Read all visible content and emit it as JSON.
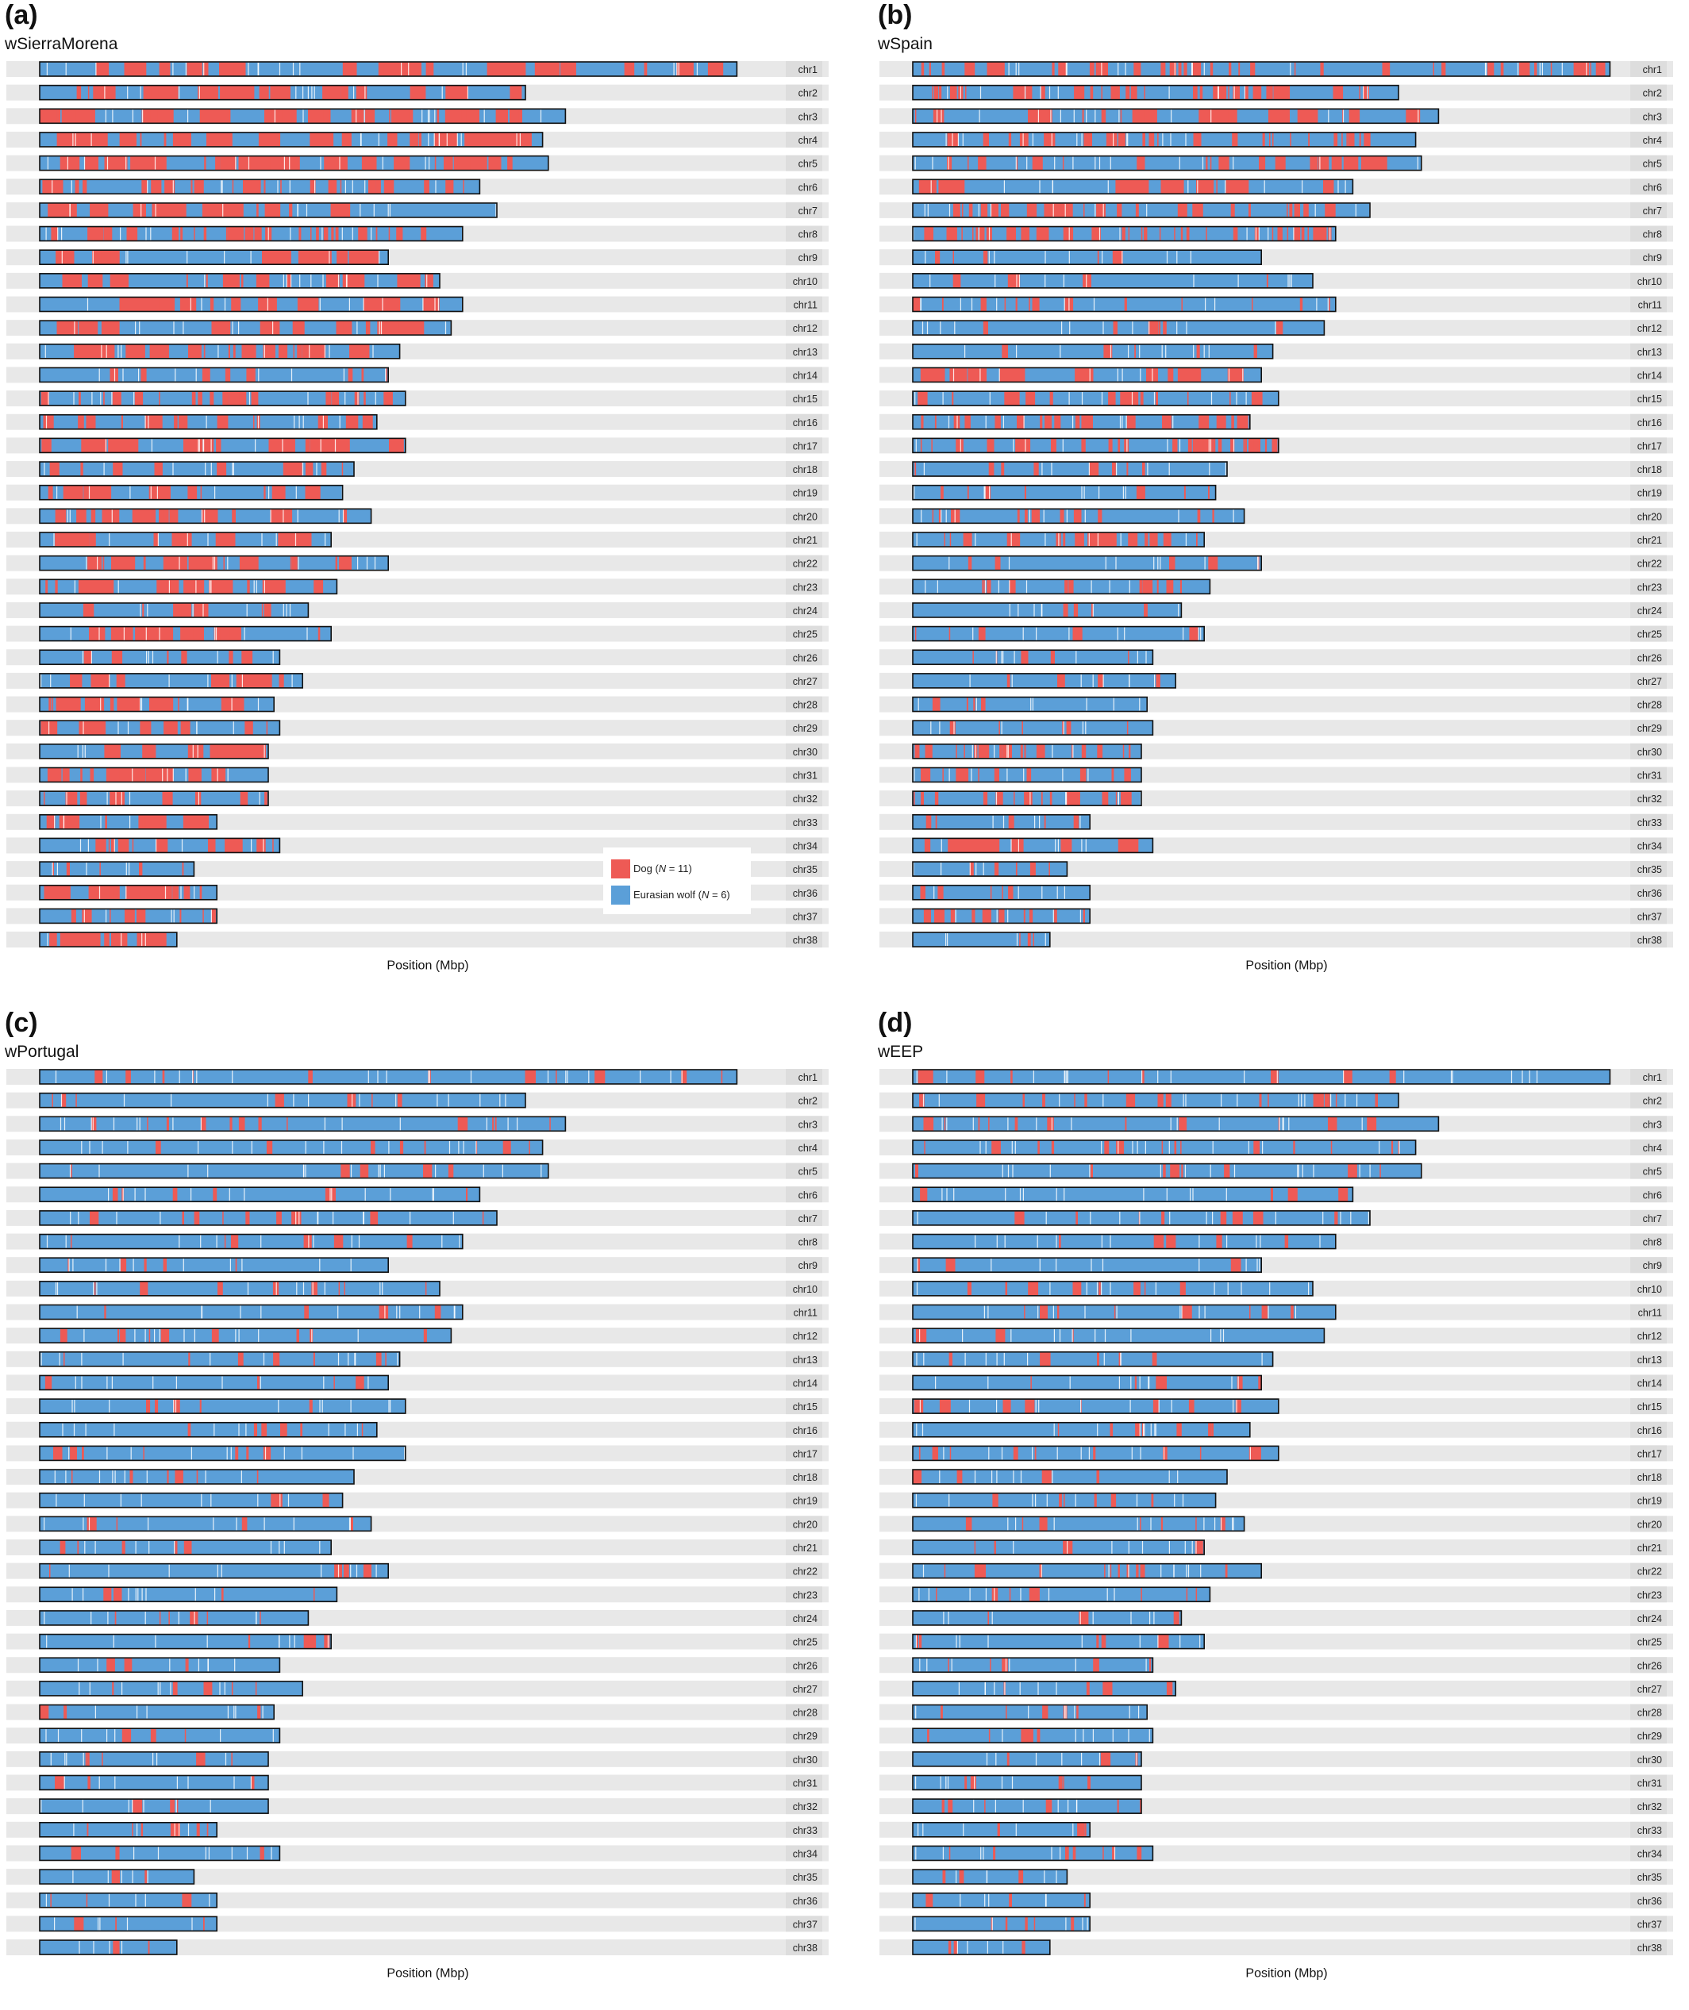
{
  "legend": {
    "dog_label": "Dog (N = 11)",
    "dog_prefix": "Dog (",
    "dog_n": "N",
    "dog_suffix": " = 11)",
    "wolf_label": "Eurasian wolf (N = 6)",
    "wolf_prefix": "Eurasian wolf (",
    "wolf_n": "N",
    "wolf_suffix": " = 6)",
    "dog_color": "#EE5A55",
    "wolf_color": "#5B9FD8"
  },
  "colors": {
    "row_background": "#E8E8E8",
    "label_background": "#DDDDDD",
    "bar_outline": "#111111",
    "dog": "#EE5A55",
    "wolf": "#5B9FD8",
    "gap": "#FFFFFF"
  },
  "chart_data": [
    {
      "panel": "(a)",
      "title": "wSierraMorena",
      "type": "bar",
      "orientation": "horizontal",
      "xlabel": "Position (Mbp)",
      "ylabel": "",
      "legend_position": "inside-bottom-right",
      "categories": [
        "chr1",
        "chr2",
        "chr3",
        "chr4",
        "chr5",
        "chr6",
        "chr7",
        "chr8",
        "chr9",
        "chr10",
        "chr11",
        "chr12",
        "chr13",
        "chr14",
        "chr15",
        "chr16",
        "chr17",
        "chr18",
        "chr19",
        "chr20",
        "chr21",
        "chr22",
        "chr23",
        "chr24",
        "chr25",
        "chr26",
        "chr27",
        "chr28",
        "chr29",
        "chr30",
        "chr31",
        "chr32",
        "chr33",
        "chr34",
        "chr35",
        "chr36",
        "chr37",
        "chr38"
      ],
      "chromosome_length_mbp": [
        122,
        85,
        92,
        88,
        89,
        77,
        80,
        74,
        61,
        70,
        74,
        72,
        63,
        61,
        64,
        59,
        64,
        55,
        53,
        58,
        51,
        61,
        52,
        47,
        51,
        42,
        46,
        41,
        42,
        40,
        40,
        40,
        31,
        42,
        27,
        31,
        31,
        24
      ],
      "dog_fraction": [
        0.45,
        0.6,
        0.65,
        0.6,
        0.58,
        0.3,
        0.4,
        0.3,
        0.55,
        0.45,
        0.45,
        0.4,
        0.45,
        0.1,
        0.25,
        0.3,
        0.75,
        0.2,
        0.4,
        0.35,
        0.35,
        0.4,
        0.4,
        0.2,
        0.45,
        0.15,
        0.35,
        0.5,
        0.35,
        0.5,
        0.55,
        0.25,
        0.7,
        0.3,
        0.05,
        0.9,
        0.2,
        0.95
      ],
      "show_legend": true
    },
    {
      "panel": "(b)",
      "title": "wSpain",
      "type": "bar",
      "orientation": "horizontal",
      "xlabel": "Position (Mbp)",
      "ylabel": "",
      "categories": [
        "chr1",
        "chr2",
        "chr3",
        "chr4",
        "chr5",
        "chr6",
        "chr7",
        "chr8",
        "chr9",
        "chr10",
        "chr11",
        "chr12",
        "chr13",
        "chr14",
        "chr15",
        "chr16",
        "chr17",
        "chr18",
        "chr19",
        "chr20",
        "chr21",
        "chr22",
        "chr23",
        "chr24",
        "chr25",
        "chr26",
        "chr27",
        "chr28",
        "chr29",
        "chr30",
        "chr31",
        "chr32",
        "chr33",
        "chr34",
        "chr35",
        "chr36",
        "chr37",
        "chr38"
      ],
      "chromosome_length_mbp": [
        122,
        85,
        92,
        88,
        89,
        77,
        80,
        74,
        61,
        70,
        74,
        72,
        63,
        61,
        64,
        59,
        64,
        55,
        53,
        58,
        51,
        61,
        52,
        47,
        51,
        42,
        46,
        41,
        42,
        40,
        40,
        40,
        31,
        42,
        27,
        31,
        31,
        24
      ],
      "dog_fraction": [
        0.25,
        0.3,
        0.35,
        0.2,
        0.25,
        0.35,
        0.3,
        0.3,
        0.05,
        0.06,
        0.08,
        0.06,
        0.05,
        0.4,
        0.25,
        0.3,
        0.3,
        0.08,
        0.06,
        0.12,
        0.3,
        0.06,
        0.12,
        0.04,
        0.08,
        0.05,
        0.06,
        0.05,
        0.05,
        0.25,
        0.2,
        0.25,
        0.08,
        0.35,
        0.1,
        0.08,
        0.25,
        0.03
      ],
      "show_legend": false
    },
    {
      "panel": "(c)",
      "title": "wPortugal",
      "type": "bar",
      "orientation": "horizontal",
      "xlabel": "Position (Mbp)",
      "ylabel": "",
      "categories": [
        "chr1",
        "chr2",
        "chr3",
        "chr4",
        "chr5",
        "chr6",
        "chr7",
        "chr8",
        "chr9",
        "chr10",
        "chr11",
        "chr12",
        "chr13",
        "chr14",
        "chr15",
        "chr16",
        "chr17",
        "chr18",
        "chr19",
        "chr20",
        "chr21",
        "chr22",
        "chr23",
        "chr24",
        "chr25",
        "chr26",
        "chr27",
        "chr28",
        "chr29",
        "chr30",
        "chr31",
        "chr32",
        "chr33",
        "chr34",
        "chr35",
        "chr36",
        "chr37",
        "chr38"
      ],
      "chromosome_length_mbp": [
        122,
        85,
        92,
        88,
        89,
        77,
        80,
        74,
        61,
        70,
        74,
        72,
        63,
        61,
        64,
        59,
        64,
        55,
        53,
        58,
        51,
        61,
        52,
        47,
        51,
        42,
        46,
        41,
        42,
        40,
        40,
        40,
        31,
        42,
        27,
        31,
        31,
        24
      ],
      "dog_fraction": [
        0.06,
        0.05,
        0.06,
        0.05,
        0.05,
        0.05,
        0.08,
        0.06,
        0.03,
        0.06,
        0.04,
        0.08,
        0.05,
        0.04,
        0.04,
        0.05,
        0.07,
        0.05,
        0.05,
        0.06,
        0.06,
        0.05,
        0.05,
        0.04,
        0.06,
        0.06,
        0.05,
        0.05,
        0.05,
        0.05,
        0.05,
        0.05,
        0.08,
        0.06,
        0.05,
        0.05,
        0.05,
        0.04
      ],
      "show_legend": false
    },
    {
      "panel": "(d)",
      "title": "wEEP",
      "type": "bar",
      "orientation": "horizontal",
      "xlabel": "Position (Mbp)",
      "ylabel": "",
      "categories": [
        "chr1",
        "chr2",
        "chr3",
        "chr4",
        "chr5",
        "chr6",
        "chr7",
        "chr8",
        "chr9",
        "chr10",
        "chr11",
        "chr12",
        "chr13",
        "chr14",
        "chr15",
        "chr16",
        "chr17",
        "chr18",
        "chr19",
        "chr20",
        "chr21",
        "chr22",
        "chr23",
        "chr24",
        "chr25",
        "chr26",
        "chr27",
        "chr28",
        "chr29",
        "chr30",
        "chr31",
        "chr32",
        "chr33",
        "chr34",
        "chr35",
        "chr36",
        "chr37",
        "chr38"
      ],
      "chromosome_length_mbp": [
        122,
        85,
        92,
        88,
        89,
        77,
        80,
        74,
        61,
        70,
        74,
        72,
        63,
        61,
        64,
        59,
        64,
        55,
        53,
        58,
        51,
        61,
        52,
        47,
        51,
        42,
        46,
        41,
        42,
        40,
        40,
        40,
        31,
        42,
        27,
        31,
        31,
        24
      ],
      "dog_fraction": [
        0.06,
        0.12,
        0.08,
        0.07,
        0.06,
        0.05,
        0.08,
        0.06,
        0.05,
        0.08,
        0.06,
        0.06,
        0.05,
        0.05,
        0.12,
        0.05,
        0.08,
        0.07,
        0.05,
        0.06,
        0.06,
        0.08,
        0.06,
        0.05,
        0.06,
        0.05,
        0.06,
        0.05,
        0.06,
        0.05,
        0.06,
        0.06,
        0.05,
        0.06,
        0.06,
        0.05,
        0.05,
        0.05
      ],
      "show_legend": false
    }
  ]
}
